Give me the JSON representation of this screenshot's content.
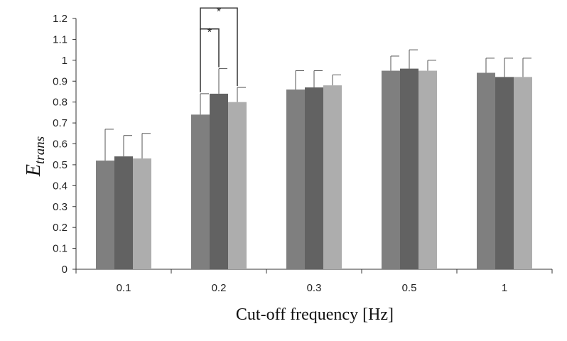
{
  "chart_data": {
    "type": "bar",
    "xlabel": "Cut-off frequency [Hz]",
    "ylabel_main": "E",
    "ylabel_sub": "trans",
    "categories": [
      "0.1",
      "0.2",
      "0.3",
      "0.5",
      "1"
    ],
    "ylim": [
      0,
      1.2
    ],
    "yticks": [
      "0",
      "0.1",
      "0.2",
      "0.3",
      "0.4",
      "0.5",
      "0.6",
      "0.7",
      "0.8",
      "0.9",
      "1",
      "1.1",
      "1.2"
    ],
    "grid": false,
    "legend": "none",
    "series": [
      {
        "color": "#7f7f7f",
        "values": [
          0.52,
          0.74,
          0.86,
          0.95,
          0.94
        ],
        "errors": [
          0.15,
          0.1,
          0.09,
          0.07,
          0.07
        ]
      },
      {
        "color": "#626262",
        "values": [
          0.54,
          0.84,
          0.87,
          0.96,
          0.92
        ],
        "errors": [
          0.1,
          0.12,
          0.08,
          0.09,
          0.09
        ]
      },
      {
        "color": "#adadad",
        "values": [
          0.53,
          0.8,
          0.88,
          0.95,
          0.92
        ],
        "errors": [
          0.12,
          0.07,
          0.05,
          0.05,
          0.09
        ]
      }
    ],
    "annotations": [
      {
        "label": "*",
        "category": "0.2",
        "from_series": 0,
        "to_series": 2,
        "level": 1.25
      },
      {
        "label": "*",
        "category": "0.2",
        "from_series": 0,
        "to_series": 1,
        "level": 1.15
      }
    ]
  }
}
